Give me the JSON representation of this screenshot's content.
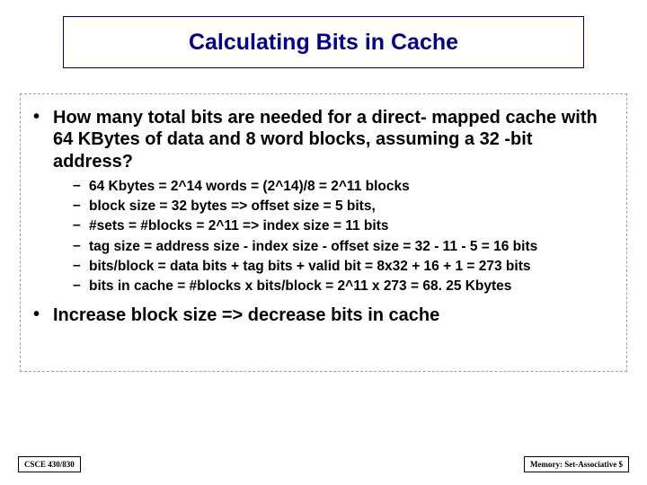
{
  "title": "Calculating Bits in Cache",
  "main1": "How many total bits are needed for a direct- mapped cache with 64 KBytes of data and 8 word blocks, assuming a 32 -bit address?",
  "sub": [
    "64 Kbytes = 2^14 words = (2^14)/8 = 2^11 blocks",
    "block size = 32 bytes => offset size = 5 bits,",
    "#sets = #blocks = 2^11 => index size = 11 bits",
    "tag size = address size - index size - offset size = 32 - 11 - 5 = 16 bits",
    "bits/block = data bits + tag bits + valid bit = 8x32 + 16 + 1 = 273 bits",
    "bits in cache = #blocks x bits/block = 2^11 x 273 = 68. 25 Kbytes"
  ],
  "main2": "Increase block size => decrease bits in cache",
  "footer_left": "CSCE 430/830",
  "footer_right": "Memory: Set-Associative $",
  "colors": {
    "title_color": "#000080",
    "title_border": "#000080",
    "text_color": "#000000",
    "dash_border": "#a0a0a0",
    "background": "#ffffff"
  },
  "fonts": {
    "title_size": 25,
    "main_size": 20,
    "sub_size": 15.5,
    "footer_size": 9
  }
}
